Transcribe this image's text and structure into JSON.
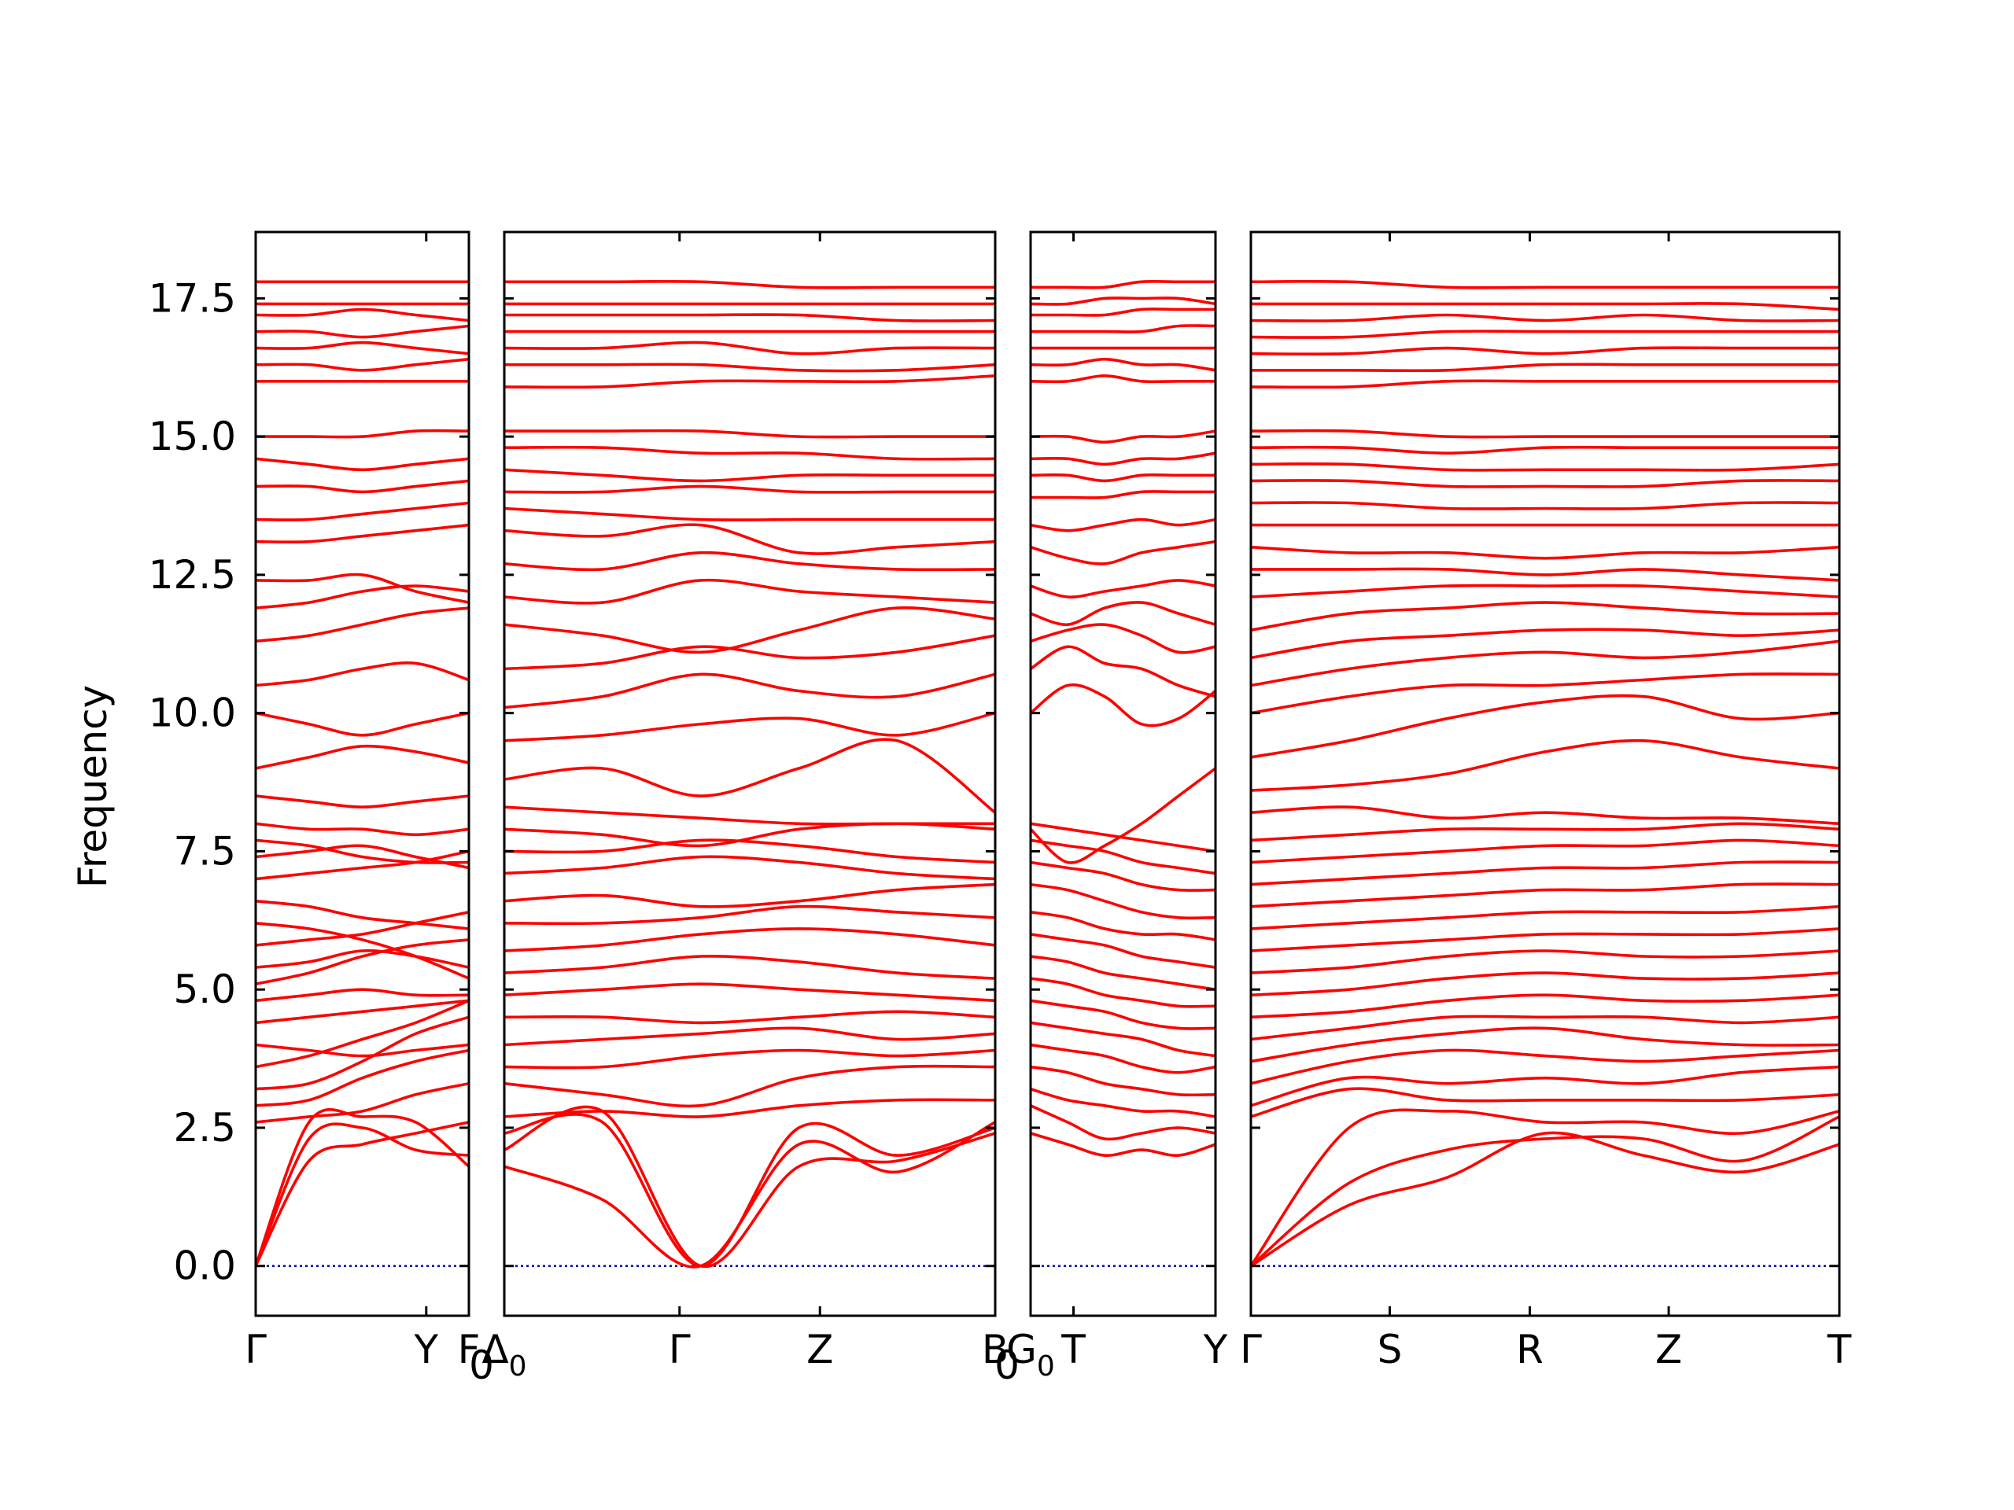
{
  "chart_data": {
    "type": "line",
    "ylabel": "Frequency",
    "ylim": [
      -0.9,
      18.7
    ],
    "yticks": [
      "0.0",
      "2.5",
      "5.0",
      "7.5",
      "10.0",
      "12.5",
      "15.0",
      "17.5"
    ],
    "ytick_values": [
      0,
      2.5,
      5,
      7.5,
      10,
      12.5,
      15,
      17.5
    ],
    "series_color": "#ff0000",
    "zero_line_color": "#0000aa",
    "panels": [
      {
        "xlabels": [
          {
            "text": "Γ",
            "x": 0
          },
          {
            "text": "Y",
            "x": 0.8
          },
          {
            "text": "F",
            "x": 1
          }
        ]
      },
      {
        "xlabels": [
          {
            "text": "Δ",
            "x": 0,
            "sub": "0"
          },
          {
            "text": "Γ",
            "x": 0.357
          },
          {
            "text": "Z",
            "x": 0.643
          },
          {
            "text": "B",
            "x": 1
          }
        ]
      },
      {
        "xlabels": [
          {
            "text": "G",
            "x": 0,
            "sub": "0"
          },
          {
            "text": "T",
            "x": 0.232
          },
          {
            "text": "Y",
            "x": 1
          }
        ]
      },
      {
        "xlabels": [
          {
            "text": "Γ",
            "x": 0
          },
          {
            "text": "S",
            "x": 0.236
          },
          {
            "text": "R",
            "x": 0.474
          },
          {
            "text": "Z",
            "x": 0.71
          },
          {
            "text": "T",
            "x": 1
          }
        ]
      }
    ],
    "panel_sub_labels": [
      "0",
      "0"
    ],
    "bands_panel1": [
      [
        0,
        2.6,
        2.7,
        2.6,
        1.8
      ],
      [
        0,
        2.3,
        2.5,
        2.1,
        2.0
      ],
      [
        0,
        1.9,
        2.2,
        2.4,
        2.6
      ],
      [
        2.6,
        2.7,
        2.8,
        3.1,
        3.3
      ],
      [
        2.9,
        3.0,
        3.4,
        3.7,
        3.9
      ],
      [
        3.2,
        3.3,
        3.7,
        4.2,
        4.5
      ],
      [
        3.6,
        3.8,
        4.1,
        4.4,
        4.8
      ],
      [
        4.0,
        3.9,
        3.8,
        3.9,
        4.0
      ],
      [
        4.4,
        4.5,
        4.6,
        4.7,
        4.8
      ],
      [
        4.8,
        4.9,
        5.0,
        4.9,
        4.9
      ],
      [
        5.1,
        5.3,
        5.6,
        5.8,
        5.9
      ],
      [
        5.4,
        5.5,
        5.7,
        5.6,
        5.4
      ],
      [
        5.8,
        5.9,
        6.0,
        6.2,
        6.4
      ],
      [
        6.2,
        6.1,
        5.9,
        5.6,
        5.2
      ],
      [
        6.6,
        6.5,
        6.3,
        6.2,
        6.1
      ],
      [
        7.0,
        7.1,
        7.2,
        7.3,
        7.5
      ],
      [
        7.4,
        7.5,
        7.6,
        7.4,
        7.2
      ],
      [
        7.7,
        7.6,
        7.4,
        7.3,
        7.3
      ],
      [
        8.0,
        7.9,
        7.9,
        7.8,
        7.9
      ],
      [
        8.5,
        8.4,
        8.3,
        8.4,
        8.5
      ],
      [
        9.0,
        9.2,
        9.4,
        9.3,
        9.1
      ],
      [
        10.0,
        9.8,
        9.6,
        9.8,
        10.0
      ],
      [
        10.5,
        10.6,
        10.8,
        10.9,
        10.6
      ],
      [
        11.3,
        11.4,
        11.6,
        11.8,
        11.9
      ],
      [
        11.9,
        12.0,
        12.2,
        12.3,
        12.2
      ],
      [
        12.4,
        12.4,
        12.5,
        12.2,
        12.0
      ],
      [
        13.1,
        13.1,
        13.2,
        13.3,
        13.4
      ],
      [
        13.5,
        13.5,
        13.6,
        13.7,
        13.8
      ],
      [
        14.1,
        14.1,
        14.0,
        14.1,
        14.2
      ],
      [
        14.6,
        14.5,
        14.4,
        14.5,
        14.6
      ],
      [
        15.0,
        15.0,
        15.0,
        15.1,
        15.1
      ],
      [
        16.0,
        16.0,
        16.0,
        16.0,
        16.0
      ],
      [
        16.3,
        16.3,
        16.2,
        16.3,
        16.4
      ],
      [
        16.6,
        16.6,
        16.7,
        16.6,
        16.5
      ],
      [
        16.9,
        16.9,
        16.8,
        16.9,
        17.0
      ],
      [
        17.2,
        17.2,
        17.3,
        17.2,
        17.1
      ],
      [
        17.4,
        17.4,
        17.4,
        17.4,
        17.4
      ],
      [
        17.8,
        17.8,
        17.8,
        17.8,
        17.8
      ]
    ],
    "bands_panel2": [
      [
        2.1,
        2.8,
        0.0,
        1.8,
        1.9,
        2.4
      ],
      [
        1.8,
        1.2,
        0.0,
        2.2,
        1.7,
        2.6
      ],
      [
        2.4,
        2.6,
        0.0,
        2.5,
        2.0,
        2.5
      ],
      [
        2.7,
        2.8,
        2.7,
        2.9,
        3.0,
        3.0
      ],
      [
        3.3,
        3.1,
        2.9,
        3.4,
        3.6,
        3.6
      ],
      [
        3.6,
        3.6,
        3.8,
        3.9,
        3.8,
        3.9
      ],
      [
        4.0,
        4.1,
        4.2,
        4.3,
        4.1,
        4.2
      ],
      [
        4.5,
        4.5,
        4.4,
        4.5,
        4.6,
        4.5
      ],
      [
        4.9,
        5.0,
        5.1,
        5.0,
        4.9,
        4.8
      ],
      [
        5.3,
        5.4,
        5.6,
        5.5,
        5.3,
        5.2
      ],
      [
        5.7,
        5.8,
        6.0,
        6.1,
        6.0,
        5.8
      ],
      [
        6.2,
        6.2,
        6.3,
        6.5,
        6.4,
        6.3
      ],
      [
        6.6,
        6.7,
        6.5,
        6.6,
        6.8,
        6.9
      ],
      [
        7.1,
        7.2,
        7.4,
        7.3,
        7.1,
        7.0
      ],
      [
        7.5,
        7.5,
        7.7,
        7.6,
        7.4,
        7.3
      ],
      [
        7.9,
        7.8,
        7.6,
        7.9,
        8.0,
        7.9
      ],
      [
        8.3,
        8.2,
        8.1,
        8.0,
        8.0,
        8.0
      ],
      [
        8.8,
        9.0,
        8.5,
        9.0,
        9.5,
        8.2
      ],
      [
        9.5,
        9.6,
        9.8,
        9.9,
        9.6,
        10.0
      ],
      [
        10.1,
        10.3,
        10.7,
        10.4,
        10.3,
        10.7
      ],
      [
        10.8,
        10.9,
        11.2,
        11.0,
        11.1,
        11.4
      ],
      [
        11.6,
        11.4,
        11.1,
        11.5,
        11.9,
        11.7
      ],
      [
        12.1,
        12.0,
        12.4,
        12.2,
        12.1,
        12.0
      ],
      [
        12.7,
        12.6,
        12.9,
        12.7,
        12.6,
        12.6
      ],
      [
        13.3,
        13.2,
        13.4,
        12.9,
        13.0,
        13.1
      ],
      [
        13.7,
        13.6,
        13.5,
        13.5,
        13.5,
        13.5
      ],
      [
        14.0,
        14.0,
        14.1,
        14.0,
        14.0,
        14.0
      ],
      [
        14.4,
        14.3,
        14.2,
        14.3,
        14.3,
        14.3
      ],
      [
        14.8,
        14.8,
        14.7,
        14.7,
        14.6,
        14.6
      ],
      [
        15.1,
        15.1,
        15.1,
        15.0,
        15.0,
        15.0
      ],
      [
        15.9,
        15.9,
        16.0,
        16.0,
        16.0,
        16.1
      ],
      [
        16.3,
        16.3,
        16.3,
        16.2,
        16.2,
        16.3
      ],
      [
        16.6,
        16.6,
        16.7,
        16.5,
        16.6,
        16.6
      ],
      [
        16.9,
        16.9,
        16.9,
        16.9,
        16.9,
        16.9
      ],
      [
        17.2,
        17.2,
        17.2,
        17.2,
        17.1,
        17.1
      ],
      [
        17.4,
        17.4,
        17.4,
        17.4,
        17.4,
        17.4
      ],
      [
        17.8,
        17.8,
        17.8,
        17.7,
        17.7,
        17.7
      ]
    ],
    "bands_panel3": [
      [
        2.4,
        2.2,
        2.0,
        2.1,
        2.0,
        2.2
      ],
      [
        2.9,
        2.6,
        2.3,
        2.4,
        2.5,
        2.4
      ],
      [
        3.2,
        3.0,
        2.9,
        2.8,
        2.8,
        2.7
      ],
      [
        3.6,
        3.5,
        3.3,
        3.2,
        3.1,
        3.1
      ],
      [
        4.0,
        3.9,
        3.8,
        3.6,
        3.5,
        3.6
      ],
      [
        4.4,
        4.3,
        4.2,
        4.1,
        3.9,
        3.8
      ],
      [
        4.8,
        4.7,
        4.6,
        4.4,
        4.3,
        4.3
      ],
      [
        5.2,
        5.1,
        4.9,
        4.8,
        4.7,
        4.7
      ],
      [
        5.6,
        5.5,
        5.3,
        5.2,
        5.1,
        5.0
      ],
      [
        6.0,
        5.9,
        5.8,
        5.6,
        5.5,
        5.4
      ],
      [
        6.4,
        6.3,
        6.1,
        6.0,
        6.0,
        5.9
      ],
      [
        6.9,
        6.8,
        6.6,
        6.4,
        6.3,
        6.3
      ],
      [
        7.3,
        7.2,
        7.1,
        6.9,
        6.8,
        6.8
      ],
      [
        7.7,
        7.6,
        7.5,
        7.3,
        7.2,
        7.1
      ],
      [
        8.0,
        7.9,
        7.8,
        7.7,
        7.6,
        7.5
      ],
      [
        7.9,
        7.3,
        7.6,
        8.0,
        8.5,
        9.0
      ],
      [
        10.0,
        10.5,
        10.3,
        9.8,
        9.9,
        10.4
      ],
      [
        10.8,
        11.2,
        10.9,
        10.8,
        10.5,
        10.3
      ],
      [
        11.3,
        11.5,
        11.6,
        11.4,
        11.1,
        11.2
      ],
      [
        11.8,
        11.6,
        11.9,
        12.0,
        11.8,
        11.6
      ],
      [
        12.3,
        12.1,
        12.2,
        12.3,
        12.4,
        12.3
      ],
      [
        13.0,
        12.8,
        12.7,
        12.9,
        13.0,
        13.1
      ],
      [
        13.4,
        13.3,
        13.4,
        13.5,
        13.4,
        13.5
      ],
      [
        13.9,
        13.9,
        13.9,
        14.0,
        14.0,
        14.0
      ],
      [
        14.3,
        14.3,
        14.2,
        14.3,
        14.3,
        14.3
      ],
      [
        14.6,
        14.6,
        14.5,
        14.6,
        14.6,
        14.7
      ],
      [
        15.0,
        15.0,
        14.9,
        15.0,
        15.0,
        15.1
      ],
      [
        16.0,
        16.0,
        16.1,
        16.0,
        16.0,
        16.0
      ],
      [
        16.3,
        16.3,
        16.4,
        16.3,
        16.3,
        16.2
      ],
      [
        16.6,
        16.6,
        16.6,
        16.6,
        16.6,
        16.6
      ],
      [
        16.9,
        16.9,
        16.9,
        16.9,
        17.0,
        17.0
      ],
      [
        17.2,
        17.2,
        17.2,
        17.3,
        17.3,
        17.3
      ],
      [
        17.4,
        17.4,
        17.5,
        17.5,
        17.5,
        17.4
      ],
      [
        17.7,
        17.7,
        17.7,
        17.8,
        17.8,
        17.8
      ]
    ],
    "bands_panel4": [
      [
        0.0,
        1.1,
        1.6,
        2.4,
        2.0,
        1.7,
        2.2
      ],
      [
        0.0,
        1.5,
        2.1,
        2.3,
        2.3,
        1.9,
        2.7
      ],
      [
        0.0,
        2.5,
        2.8,
        2.6,
        2.6,
        2.4,
        2.8
      ],
      [
        2.7,
        3.2,
        3.0,
        3.0,
        3.0,
        3.0,
        3.1
      ],
      [
        2.9,
        3.4,
        3.3,
        3.4,
        3.3,
        3.5,
        3.6
      ],
      [
        3.3,
        3.7,
        3.9,
        3.8,
        3.7,
        3.8,
        3.9
      ],
      [
        3.7,
        4.0,
        4.2,
        4.3,
        4.1,
        4.0,
        4.0
      ],
      [
        4.1,
        4.3,
        4.5,
        4.5,
        4.5,
        4.4,
        4.5
      ],
      [
        4.5,
        4.6,
        4.8,
        4.9,
        4.8,
        4.8,
        4.9
      ],
      [
        4.9,
        5.0,
        5.2,
        5.3,
        5.2,
        5.2,
        5.3
      ],
      [
        5.3,
        5.4,
        5.6,
        5.7,
        5.6,
        5.6,
        5.7
      ],
      [
        5.7,
        5.8,
        5.9,
        6.0,
        6.0,
        6.0,
        6.1
      ],
      [
        6.1,
        6.2,
        6.3,
        6.4,
        6.4,
        6.4,
        6.5
      ],
      [
        6.5,
        6.6,
        6.7,
        6.8,
        6.8,
        6.9,
        6.9
      ],
      [
        6.9,
        7.0,
        7.1,
        7.2,
        7.2,
        7.3,
        7.3
      ],
      [
        7.3,
        7.4,
        7.5,
        7.6,
        7.6,
        7.7,
        7.6
      ],
      [
        7.7,
        7.8,
        7.9,
        7.9,
        7.9,
        8.0,
        7.9
      ],
      [
        8.2,
        8.3,
        8.1,
        8.2,
        8.1,
        8.1,
        8.0
      ],
      [
        8.6,
        8.7,
        8.9,
        9.3,
        9.5,
        9.2,
        9.0
      ],
      [
        9.2,
        9.5,
        9.9,
        10.2,
        10.3,
        9.9,
        10.0
      ],
      [
        10.0,
        10.3,
        10.5,
        10.5,
        10.6,
        10.7,
        10.7
      ],
      [
        10.5,
        10.8,
        11.0,
        11.1,
        11.0,
        11.1,
        11.3
      ],
      [
        11.0,
        11.3,
        11.4,
        11.5,
        11.5,
        11.4,
        11.5
      ],
      [
        11.5,
        11.8,
        11.9,
        12.0,
        11.9,
        11.8,
        11.8
      ],
      [
        12.1,
        12.2,
        12.3,
        12.3,
        12.3,
        12.2,
        12.1
      ],
      [
        12.6,
        12.6,
        12.6,
        12.5,
        12.6,
        12.5,
        12.4
      ],
      [
        13.0,
        12.9,
        12.9,
        12.8,
        12.9,
        12.9,
        13.0
      ],
      [
        13.4,
        13.4,
        13.4,
        13.4,
        13.4,
        13.4,
        13.4
      ],
      [
        13.8,
        13.8,
        13.7,
        13.7,
        13.7,
        13.8,
        13.8
      ],
      [
        14.2,
        14.2,
        14.1,
        14.1,
        14.1,
        14.2,
        14.2
      ],
      [
        14.5,
        14.5,
        14.4,
        14.4,
        14.4,
        14.4,
        14.5
      ],
      [
        14.8,
        14.8,
        14.7,
        14.8,
        14.8,
        14.8,
        14.8
      ],
      [
        15.1,
        15.1,
        15.0,
        15.0,
        15.0,
        15.0,
        15.0
      ],
      [
        15.9,
        15.9,
        16.0,
        16.0,
        16.0,
        16.0,
        16.0
      ],
      [
        16.2,
        16.2,
        16.2,
        16.3,
        16.3,
        16.3,
        16.3
      ],
      [
        16.5,
        16.5,
        16.6,
        16.5,
        16.6,
        16.6,
        16.6
      ],
      [
        16.8,
        16.8,
        16.9,
        16.9,
        16.9,
        16.9,
        16.9
      ],
      [
        17.1,
        17.1,
        17.2,
        17.1,
        17.2,
        17.1,
        17.1
      ],
      [
        17.4,
        17.4,
        17.4,
        17.4,
        17.4,
        17.4,
        17.3
      ],
      [
        17.8,
        17.8,
        17.7,
        17.7,
        17.7,
        17.7,
        17.7
      ]
    ]
  }
}
